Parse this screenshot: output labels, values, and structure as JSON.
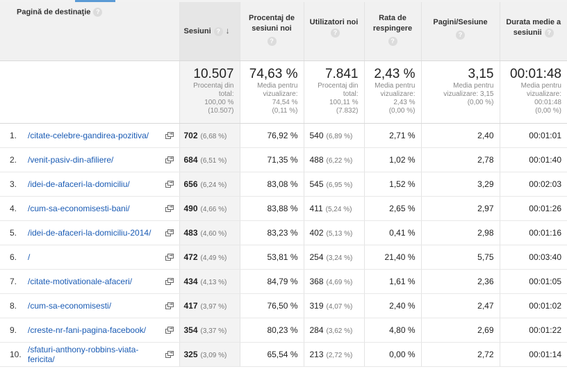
{
  "header": {
    "landing_page": "Pagină de destinaţie",
    "sessions": "Sesiuni",
    "new_sessions": "Procentaj de sesiuni noi",
    "users": "Utilizatori noi",
    "bounce": "Rata de respingere",
    "pages_session": "Pagini/Sesiune",
    "avg_duration": "Durata medie a sesiunii",
    "help_glyph": "?",
    "sort_glyph": "↓"
  },
  "totals": {
    "sessions": {
      "value": "10.507",
      "l1": "Procentaj din",
      "l2": "total:",
      "l3": "100,00 %",
      "l4": "(10.507)"
    },
    "new_sessions": {
      "value": "74,63 %",
      "l1": "Media pentru",
      "l2": "vizualizare:",
      "l3": "74,54 %",
      "l4": "(0,11 %)"
    },
    "users": {
      "value": "7.841",
      "l1": "Procentaj din",
      "l2": "total:",
      "l3": "100,11 %",
      "l4": "(7.832)"
    },
    "bounce": {
      "value": "2,43 %",
      "l1": "Media pentru",
      "l2": "vizualizare:",
      "l3": "2,43 %",
      "l4": "(0,00 %)"
    },
    "pages_session": {
      "value": "3,15",
      "l1": "Media pentru",
      "l2": "vizualizare: 3,15",
      "l3": "(0,00 %)",
      "l4": ""
    },
    "avg_duration": {
      "value": "00:01:48",
      "l1": "Media pentru",
      "l2": "vizualizare:",
      "l3": "00:01:48",
      "l4": "(0,00 %)"
    }
  },
  "rows": [
    {
      "idx": "1.",
      "page": "/citate-celebre-gandirea-pozitiva/",
      "sessions": "702",
      "sessions_pct": "(6,68 %)",
      "new": "76,92 %",
      "users": "540",
      "users_pct": "(6,89 %)",
      "bounce": "2,71 %",
      "pages": "2,40",
      "duration": "00:01:01"
    },
    {
      "idx": "2.",
      "page": "/venit-pasiv-din-afiliere/",
      "sessions": "684",
      "sessions_pct": "(6,51 %)",
      "new": "71,35 %",
      "users": "488",
      "users_pct": "(6,22 %)",
      "bounce": "1,02 %",
      "pages": "2,78",
      "duration": "00:01:40"
    },
    {
      "idx": "3.",
      "page": "/idei-de-afaceri-la-domiciliu/",
      "sessions": "656",
      "sessions_pct": "(6,24 %)",
      "new": "83,08 %",
      "users": "545",
      "users_pct": "(6,95 %)",
      "bounce": "1,52 %",
      "pages": "3,29",
      "duration": "00:02:03"
    },
    {
      "idx": "4.",
      "page": "/cum-sa-economisesti-bani/",
      "sessions": "490",
      "sessions_pct": "(4,66 %)",
      "new": "83,88 %",
      "users": "411",
      "users_pct": "(5,24 %)",
      "bounce": "2,65 %",
      "pages": "2,97",
      "duration": "00:01:26"
    },
    {
      "idx": "5.",
      "page": "/idei-de-afaceri-la-domiciliu-2014/",
      "sessions": "483",
      "sessions_pct": "(4,60 %)",
      "new": "83,23 %",
      "users": "402",
      "users_pct": "(5,13 %)",
      "bounce": "0,41 %",
      "pages": "2,98",
      "duration": "00:01:16"
    },
    {
      "idx": "6.",
      "page": "/",
      "sessions": "472",
      "sessions_pct": "(4,49 %)",
      "new": "53,81 %",
      "users": "254",
      "users_pct": "(3,24 %)",
      "bounce": "21,40 %",
      "pages": "5,75",
      "duration": "00:03:40"
    },
    {
      "idx": "7.",
      "page": "/citate-motivationale-afaceri/",
      "sessions": "434",
      "sessions_pct": "(4,13 %)",
      "new": "84,79 %",
      "users": "368",
      "users_pct": "(4,69 %)",
      "bounce": "1,61 %",
      "pages": "2,36",
      "duration": "00:01:05"
    },
    {
      "idx": "8.",
      "page": "/cum-sa-economisesti/",
      "sessions": "417",
      "sessions_pct": "(3,97 %)",
      "new": "76,50 %",
      "users": "319",
      "users_pct": "(4,07 %)",
      "bounce": "2,40 %",
      "pages": "2,47",
      "duration": "00:01:02"
    },
    {
      "idx": "9.",
      "page": "/creste-nr-fani-pagina-facebook/",
      "sessions": "354",
      "sessions_pct": "(3,37 %)",
      "new": "80,23 %",
      "users": "284",
      "users_pct": "(3,62 %)",
      "bounce": "4,80 %",
      "pages": "2,69",
      "duration": "00:01:22"
    },
    {
      "idx": "10.",
      "page": "/sfaturi-anthony-robbins-viata-fericita/",
      "sessions": "325",
      "sessions_pct": "(3,09 %)",
      "new": "65,54 %",
      "users": "213",
      "users_pct": "(2,72 %)",
      "bounce": "0,00 %",
      "pages": "2,72",
      "duration": "00:01:14"
    }
  ],
  "icons": {
    "external_link": "external-link-icon",
    "help": "help-icon",
    "sort": "sort-desc-icon"
  },
  "colors": {
    "link": "#1a5bb4",
    "header_bg": "#f1f1f1",
    "sessions_col_bg": "#f3f3f3"
  }
}
